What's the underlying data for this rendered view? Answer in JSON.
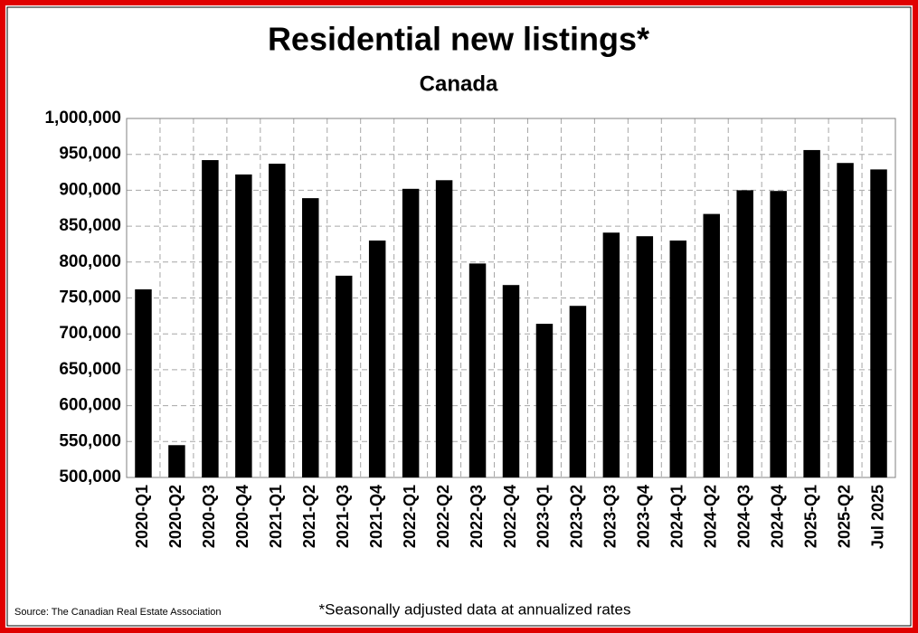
{
  "chart_data": {
    "type": "bar",
    "title": "Residential new listings*",
    "subtitle": "Canada",
    "categories": [
      "2020-Q1",
      "2020-Q2",
      "2020-Q3",
      "2020-Q4",
      "2021-Q1",
      "2021-Q2",
      "2021-Q3",
      "2021-Q4",
      "2022-Q1",
      "2022-Q2",
      "2022-Q3",
      "2022-Q4",
      "2023-Q1",
      "2023-Q2",
      "2023-Q3",
      "2023-Q4",
      "2024-Q1",
      "2024-Q2",
      "2024-Q3",
      "2024-Q4",
      "2025-Q1",
      "2025-Q2",
      "Jul 2025"
    ],
    "values": [
      762000,
      545000,
      942000,
      922000,
      937000,
      889000,
      781000,
      830000,
      902000,
      914000,
      798000,
      768000,
      714000,
      739000,
      841000,
      836000,
      830000,
      867000,
      900000,
      899000,
      956000,
      938000,
      929000
    ],
    "color": "#000000",
    "ylim": [
      500000,
      1000000
    ],
    "yticks": [
      {
        "value": 500000,
        "label": "500,000"
      },
      {
        "value": 550000,
        "label": "550,000"
      },
      {
        "value": 600000,
        "label": "600,000"
      },
      {
        "value": 650000,
        "label": "650,000"
      },
      {
        "value": 700000,
        "label": "700,000"
      },
      {
        "value": 750000,
        "label": "750,000"
      },
      {
        "value": 800000,
        "label": "800,000"
      },
      {
        "value": 850000,
        "label": "850,000"
      },
      {
        "value": 900000,
        "label": "900,000"
      },
      {
        "value": 950000,
        "label": "950,000"
      },
      {
        "value": 1000000,
        "label": "1,000,000"
      }
    ],
    "grid": true,
    "source": "Source: The Canadian Real Estate Association",
    "note": "*Seasonally adjusted data at annualized rates"
  }
}
